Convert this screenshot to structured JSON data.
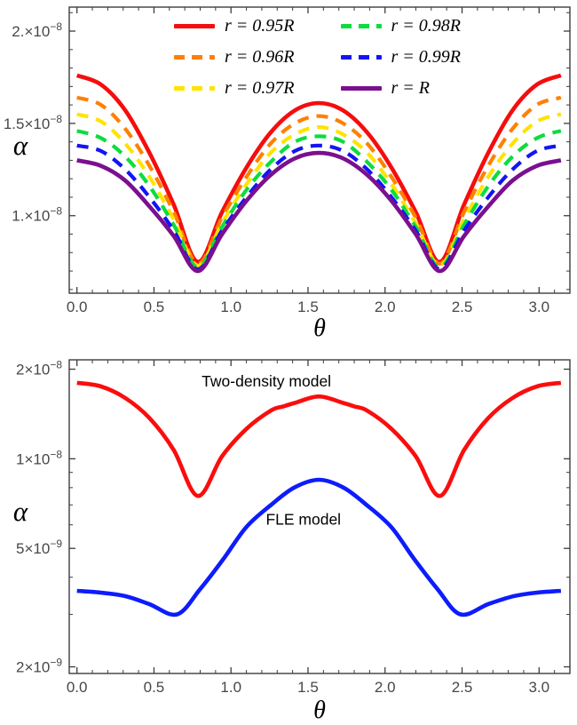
{
  "figure": {
    "background": "#ffffff",
    "frame_color": "#3d3d3d",
    "tick_label_color": "#474747"
  },
  "chart_data": [
    {
      "type": "line",
      "title": "",
      "xlabel": "θ",
      "ylabel": "α",
      "yscale": "linear",
      "xlim": [
        -0.05,
        3.2
      ],
      "ylim": [
        5.8e-09,
        2.13e-08
      ],
      "grid": false,
      "legend_position": "top-center-inside",
      "x_ticks": [
        0,
        0.5,
        1,
        1.5,
        2,
        2.5,
        3
      ],
      "x_tick_labels": [
        "0.0",
        "0.5",
        "1.0",
        "1.5",
        "2.0",
        "2.5",
        "3.0"
      ],
      "x_minor_step": 0.1,
      "y_minor_step": 1e-09,
      "y_ticks": [
        {
          "value": 1e-08,
          "label": "1.×10⁻⁸",
          "mantissa": "1.",
          "exponent": "−8"
        },
        {
          "value": 1.5e-08,
          "label": "1.5×10⁻⁸",
          "mantissa": "1.5",
          "exponent": "−8"
        },
        {
          "value": 2e-08,
          "label": "2.×10⁻⁸",
          "mantissa": "2.",
          "exponent": "−8"
        }
      ],
      "x": [
        0,
        0.157,
        0.314,
        0.471,
        0.628,
        0.785,
        0.942,
        1.1,
        1.257,
        1.414,
        1.571,
        1.728,
        1.885,
        2.042,
        2.199,
        2.356,
        2.513,
        2.67,
        2.827,
        2.985,
        3.142
      ],
      "series": [
        {
          "name": "r = 0.95R",
          "color": "#f50d0d",
          "style": "solid",
          "width": 4.6,
          "y": [
            1.76e-08,
            1.71e-08,
            1.57e-08,
            1.34e-08,
            1.06e-08,
            7.5e-09,
            1.02e-08,
            1.26e-08,
            1.45e-08,
            1.57e-08,
            1.61e-08,
            1.57e-08,
            1.45e-08,
            1.26e-08,
            1.02e-08,
            7.5e-09,
            1.06e-08,
            1.34e-08,
            1.57e-08,
            1.71e-08,
            1.76e-08
          ]
        },
        {
          "name": "r = 0.96R",
          "color": "#ff8000",
          "style": "dashed",
          "width": 4.2,
          "y": [
            1.64e-08,
            1.6e-08,
            1.47e-08,
            1.27e-08,
            1.02e-08,
            7.4e-09,
            9.9e-09,
            1.21e-08,
            1.39e-08,
            1.5e-08,
            1.54e-08,
            1.5e-08,
            1.39e-08,
            1.21e-08,
            9.9e-09,
            7.4e-09,
            1.02e-08,
            1.27e-08,
            1.47e-08,
            1.6e-08,
            1.64e-08
          ]
        },
        {
          "name": "r = 0.97R",
          "color": "#ffe300",
          "style": "dashed",
          "width": 4.2,
          "y": [
            1.55e-08,
            1.51e-08,
            1.39e-08,
            1.21e-08,
            9.8e-09,
            7.3e-09,
            9.6e-09,
            1.17e-08,
            1.34e-08,
            1.44e-08,
            1.48e-08,
            1.44e-08,
            1.34e-08,
            1.17e-08,
            9.6e-09,
            7.3e-09,
            9.8e-09,
            1.21e-08,
            1.39e-08,
            1.51e-08,
            1.55e-08
          ]
        },
        {
          "name": "r = 0.98R",
          "color": "#0ddc3e",
          "style": "dashed",
          "width": 4.2,
          "y": [
            1.46e-08,
            1.42e-08,
            1.32e-08,
            1.16e-08,
            9.5e-09,
            7.2e-09,
            9.4e-09,
            1.14e-08,
            1.29e-08,
            1.4e-08,
            1.43e-08,
            1.4e-08,
            1.29e-08,
            1.14e-08,
            9.4e-09,
            7.2e-09,
            9.5e-09,
            1.16e-08,
            1.32e-08,
            1.42e-08,
            1.46e-08
          ]
        },
        {
          "name": "r = 0.99R",
          "color": "#1414f5",
          "style": "dashed",
          "width": 4.2,
          "y": [
            1.38e-08,
            1.35e-08,
            1.25e-08,
            1.1e-08,
            9.2e-09,
            7.1e-09,
            9.2e-09,
            1.1e-08,
            1.25e-08,
            1.35e-08,
            1.38e-08,
            1.35e-08,
            1.25e-08,
            1.1e-08,
            9.2e-09,
            7.1e-09,
            9.2e-09,
            1.1e-08,
            1.25e-08,
            1.35e-08,
            1.38e-08
          ]
        },
        {
          "name": "r = R",
          "color": "#7a108f",
          "style": "solid",
          "width": 4.6,
          "y": [
            1.3e-08,
            1.27e-08,
            1.19e-08,
            1.05e-08,
            8.9e-09,
            7e-09,
            9e-09,
            1.08e-08,
            1.22e-08,
            1.31e-08,
            1.34e-08,
            1.31e-08,
            1.22e-08,
            1.08e-08,
            9e-09,
            7e-09,
            8.9e-09,
            1.05e-08,
            1.19e-08,
            1.27e-08,
            1.3e-08
          ]
        }
      ]
    },
    {
      "type": "line",
      "title": "",
      "xlabel": "θ",
      "ylabel": "α",
      "yscale": "log",
      "xlim": [
        -0.05,
        3.2
      ],
      "ylim": [
        1.9e-09,
        2.15e-08
      ],
      "grid": false,
      "x_ticks": [
        0,
        0.5,
        1,
        1.5,
        2,
        2.5,
        3
      ],
      "x_tick_labels": [
        "0.0",
        "0.5",
        "1.0",
        "1.5",
        "2.0",
        "2.5",
        "3.0"
      ],
      "x_minor_step": 0.1,
      "y_ticks": [
        {
          "value": 2e-09,
          "label": "2×10⁻⁹",
          "mantissa": "2",
          "exponent": "−9"
        },
        {
          "value": 5e-09,
          "label": "5×10⁻⁹",
          "mantissa": "5",
          "exponent": "−9"
        },
        {
          "value": 1e-08,
          "label": "1×10⁻⁸",
          "mantissa": "1",
          "exponent": "−8"
        },
        {
          "value": 2e-08,
          "label": "2×10⁻⁸",
          "mantissa": "2",
          "exponent": "−8"
        }
      ],
      "annotations": [
        {
          "text": "Two-density model",
          "x": 1.23,
          "y": 1.75e-08
        },
        {
          "text": "FLE model",
          "x": 1.47,
          "y": 6e-09
        }
      ],
      "series": [
        {
          "name": "Two-density model",
          "color": "#fb0d0d",
          "style": "solid",
          "width": 4.6,
          "x": [
            0,
            0.157,
            0.314,
            0.471,
            0.628,
            0.785,
            0.942,
            1.1,
            1.257,
            1.34,
            1.414,
            1.571,
            1.728,
            1.8,
            1.885,
            2.042,
            2.199,
            2.356,
            2.513,
            2.67,
            2.827,
            2.985,
            3.142
          ],
          "y": [
            1.8e-08,
            1.75e-08,
            1.6e-08,
            1.37e-08,
            1.07e-08,
            7.5e-09,
            1.02e-08,
            1.26e-08,
            1.45e-08,
            1.5e-08,
            1.54e-08,
            1.62e-08,
            1.54e-08,
            1.5e-08,
            1.45e-08,
            1.26e-08,
            1.02e-08,
            7.5e-09,
            1.07e-08,
            1.37e-08,
            1.6e-08,
            1.75e-08,
            1.8e-08
          ]
        },
        {
          "name": "FLE model",
          "color": "#0d1cfb",
          "style": "solid",
          "width": 4.6,
          "x": [
            0,
            0.16,
            0.32,
            0.47,
            0.65,
            0.8,
            0.95,
            1.1,
            1.26,
            1.41,
            1.571,
            1.73,
            1.88,
            2.04,
            2.19,
            2.34,
            2.49,
            2.67,
            2.83,
            2.98,
            3.142
          ],
          "y": [
            3.6e-09,
            3.55e-09,
            3.45e-09,
            3.25e-09,
            3e-09,
            3.65e-09,
            4.6e-09,
            5.9e-09,
            7e-09,
            8e-09,
            8.5e-09,
            8e-09,
            7e-09,
            5.9e-09,
            4.6e-09,
            3.65e-09,
            3e-09,
            3.25e-09,
            3.45e-09,
            3.55e-09,
            3.6e-09
          ]
        }
      ]
    }
  ]
}
